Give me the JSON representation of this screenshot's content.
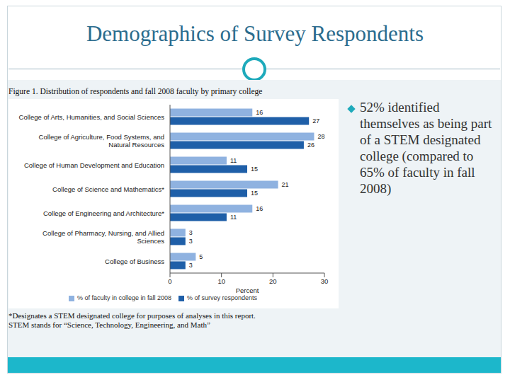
{
  "slide": {
    "title": "Demographics of Survey Respondents",
    "caption": "Figure 1. Distribution of respondents and fall 2008 faculty by primary college",
    "bullet": "52% identified themselves as being part of a STEM designated college (compared to 65% of faculty in fall 2008)",
    "footnote": [
      "*Designates a STEM designated college for purposes of analyses in this report.",
      "STEM stands for “Science, Technology, Engineering, and Math”"
    ]
  },
  "chart_data": {
    "type": "bar",
    "orientation": "horizontal",
    "categories": [
      "College of Arts, Humanities, and Social Sciences",
      "College of Agriculture, Food Systems, and Natural Resources",
      "College of Human Development and Education",
      "College of Science and Mathematics*",
      "College of Engineering and Architecture*",
      "College of Pharmacy, Nursing, and Allied Sciences",
      "College of Business"
    ],
    "series": [
      {
        "name": "% of faculty in college in fall 2008",
        "color": "#8fb2e0",
        "values": [
          16,
          28,
          11,
          21,
          16,
          3,
          5
        ]
      },
      {
        "name": "% of survey respondents",
        "color": "#1f5fa8",
        "values": [
          27,
          26,
          15,
          15,
          11,
          3,
          3
        ]
      }
    ],
    "xlabel": "Percent",
    "xlim": [
      0,
      30
    ],
    "xticks": [
      0,
      10,
      20,
      30
    ],
    "data_labels": true,
    "legend": "bottom",
    "grid": false
  }
}
